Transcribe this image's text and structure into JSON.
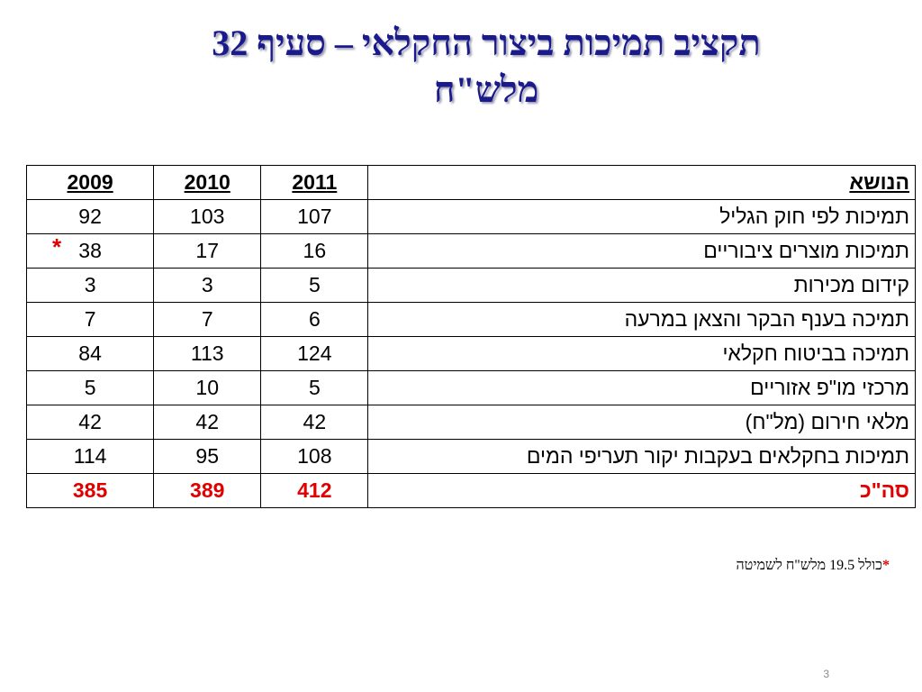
{
  "title": {
    "line1": "תקציב תמיכות ביצור החקלאי – סעיף 32",
    "line2": "מלש\"ח"
  },
  "table": {
    "headers": {
      "subject": "הנושא",
      "y2011": "2011",
      "y2010": "2010",
      "y2009": "2009"
    },
    "rows": [
      {
        "subject": "תמיכות לפי חוק הגליל",
        "y2011": "107",
        "y2010": "103",
        "y2009": "92",
        "marker": ""
      },
      {
        "subject": "תמיכות מוצרים ציבוריים",
        "y2011": "16",
        "y2010": "17",
        "y2009": "38",
        "marker": "*"
      },
      {
        "subject": "קידום מכירות",
        "y2011": "5",
        "y2010": "3",
        "y2009": "3",
        "marker": ""
      },
      {
        "subject": "תמיכה בענף הבקר והצאן במרעה",
        "y2011": "6",
        "y2010": "7",
        "y2009": "7",
        "marker": ""
      },
      {
        "subject": "תמיכה בביטוח חקלאי",
        "y2011": "124",
        "y2010": "113",
        "y2009": "84",
        "marker": ""
      },
      {
        "subject": "מרכזי מו\"פ אזוריים",
        "y2011": "5",
        "y2010": "10",
        "y2009": "5",
        "marker": ""
      },
      {
        "subject": "מלאי חירום (מל\"ח)",
        "y2011": "42",
        "y2010": "42",
        "y2009": "42",
        "marker": ""
      },
      {
        "subject": "תמיכות  בחקלאים בעקבות יקור תעריפי המים",
        "y2011": "108",
        "y2010": "95",
        "y2009": "114",
        "marker": ""
      }
    ],
    "total": {
      "subject": "סה\"כ",
      "y2011": "412",
      "y2010": "389",
      "y2009": "385"
    }
  },
  "footnote": {
    "star": "*",
    "text": "כולל 19.5 מלש\"ח לשמיטה"
  },
  "page_number": "3",
  "colors": {
    "title": "#1a1a8c",
    "accent": "#e00000"
  }
}
